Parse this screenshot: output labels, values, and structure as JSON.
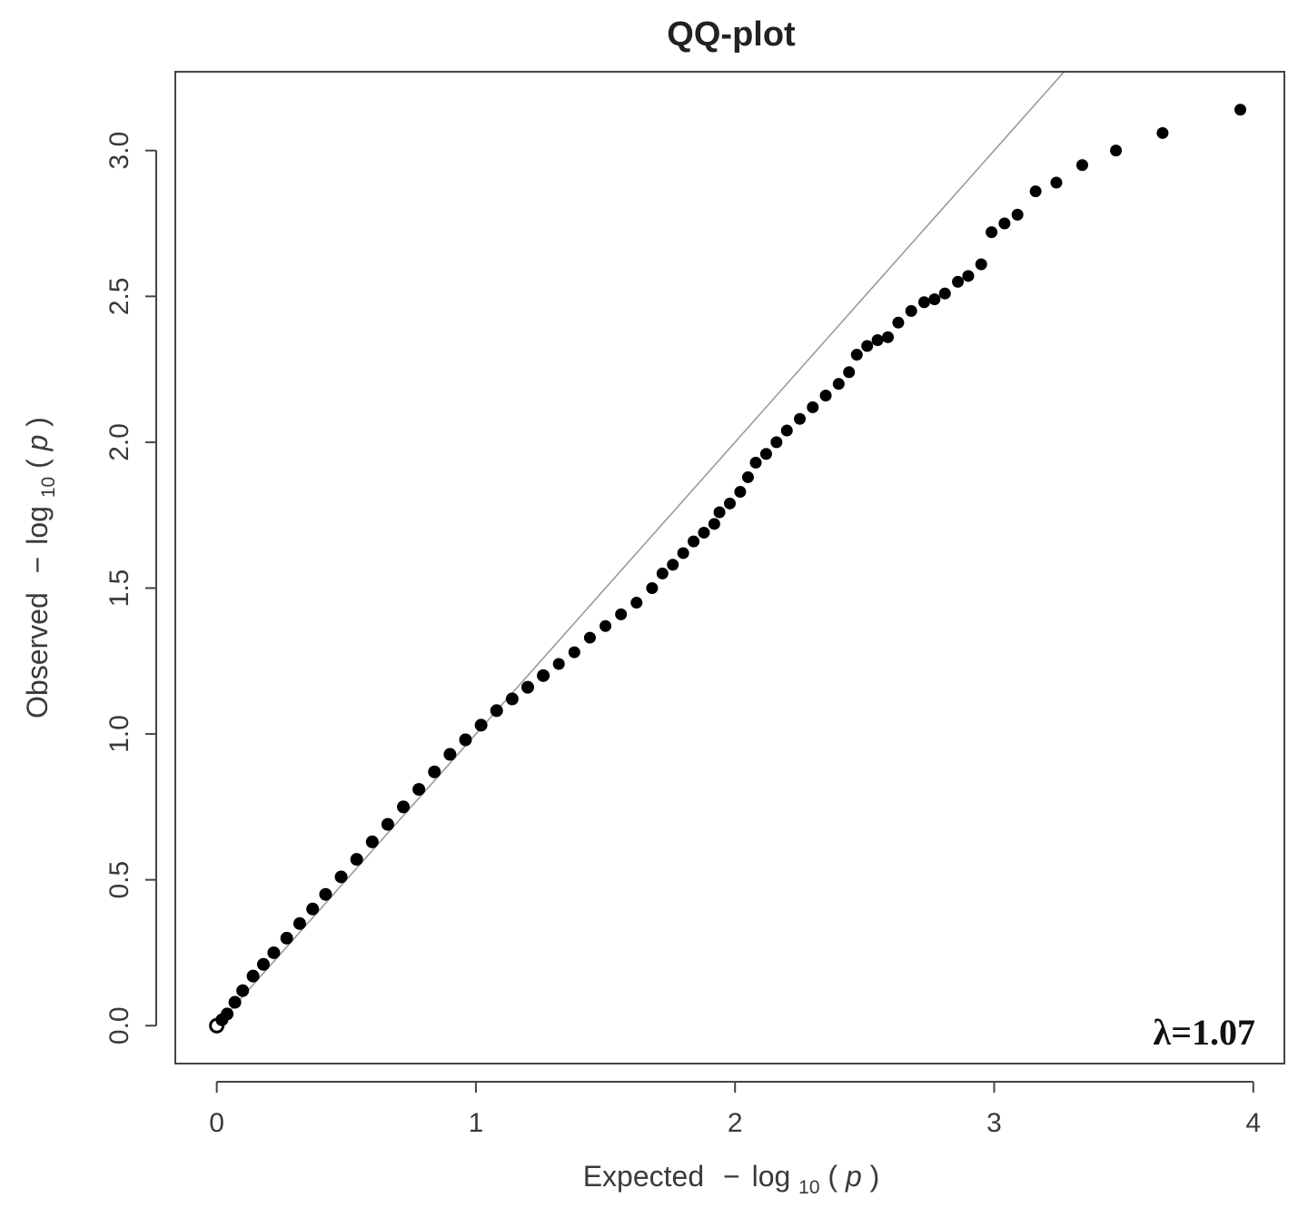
{
  "chart_data": {
    "type": "scatter",
    "title": "QQ-plot",
    "xlabel": {
      "prefix": "Expected",
      "minus": "−",
      "log": "log",
      "subscript": "10",
      "open": "(",
      "var": "p",
      "close": ")"
    },
    "ylabel": {
      "prefix": "Observed",
      "minus": "−",
      "log": "log",
      "subscript": "10",
      "open": "(",
      "var": "p",
      "close": ")"
    },
    "xlim": [
      -0.16,
      4.12
    ],
    "ylim": [
      -0.13,
      3.27
    ],
    "x_ticks": [
      0,
      1,
      2,
      3,
      4
    ],
    "x_tick_labels": [
      "0",
      "1",
      "2",
      "3",
      "4"
    ],
    "y_ticks": [
      0.0,
      0.5,
      1.0,
      1.5,
      2.0,
      2.5,
      3.0
    ],
    "y_tick_labels": [
      "0.0",
      "0.5",
      "1.0",
      "1.5",
      "2.0",
      "2.5",
      "3.0"
    ],
    "reference_line": {
      "slope": 1,
      "intercept": 0
    },
    "annotation": "λ=1.07",
    "grid": false,
    "point_color": "#000000",
    "line_color": "#9a9a9a",
    "points": [
      [
        0.0,
        0.0
      ],
      [
        0.02,
        0.02
      ],
      [
        0.04,
        0.04
      ],
      [
        0.07,
        0.08
      ],
      [
        0.1,
        0.12
      ],
      [
        0.14,
        0.17
      ],
      [
        0.18,
        0.21
      ],
      [
        0.22,
        0.25
      ],
      [
        0.27,
        0.3
      ],
      [
        0.32,
        0.35
      ],
      [
        0.37,
        0.4
      ],
      [
        0.42,
        0.45
      ],
      [
        0.48,
        0.51
      ],
      [
        0.54,
        0.57
      ],
      [
        0.6,
        0.63
      ],
      [
        0.66,
        0.69
      ],
      [
        0.72,
        0.75
      ],
      [
        0.78,
        0.81
      ],
      [
        0.84,
        0.87
      ],
      [
        0.9,
        0.93
      ],
      [
        0.96,
        0.98
      ],
      [
        1.02,
        1.03
      ],
      [
        1.08,
        1.08
      ],
      [
        1.14,
        1.12
      ],
      [
        1.2,
        1.16
      ],
      [
        1.26,
        1.2
      ],
      [
        1.32,
        1.24
      ],
      [
        1.38,
        1.28
      ],
      [
        1.44,
        1.33
      ],
      [
        1.5,
        1.37
      ],
      [
        1.56,
        1.41
      ],
      [
        1.62,
        1.45
      ],
      [
        1.68,
        1.5
      ],
      [
        1.72,
        1.55
      ],
      [
        1.76,
        1.58
      ],
      [
        1.8,
        1.62
      ],
      [
        1.84,
        1.66
      ],
      [
        1.88,
        1.69
      ],
      [
        1.92,
        1.72
      ],
      [
        1.94,
        1.76
      ],
      [
        1.98,
        1.79
      ],
      [
        2.02,
        1.83
      ],
      [
        2.05,
        1.88
      ],
      [
        2.08,
        1.93
      ],
      [
        2.12,
        1.96
      ],
      [
        2.16,
        2.0
      ],
      [
        2.2,
        2.04
      ],
      [
        2.25,
        2.08
      ],
      [
        2.3,
        2.12
      ],
      [
        2.35,
        2.16
      ],
      [
        2.4,
        2.2
      ],
      [
        2.44,
        2.24
      ],
      [
        2.47,
        2.3
      ],
      [
        2.51,
        2.33
      ],
      [
        2.55,
        2.35
      ],
      [
        2.59,
        2.36
      ],
      [
        2.63,
        2.41
      ],
      [
        2.68,
        2.45
      ],
      [
        2.73,
        2.48
      ],
      [
        2.77,
        2.49
      ],
      [
        2.81,
        2.51
      ],
      [
        2.86,
        2.55
      ],
      [
        2.9,
        2.57
      ],
      [
        2.95,
        2.61
      ],
      [
        2.99,
        2.72
      ],
      [
        3.04,
        2.75
      ],
      [
        3.09,
        2.78
      ],
      [
        3.16,
        2.86
      ],
      [
        3.24,
        2.89
      ],
      [
        3.34,
        2.95
      ],
      [
        3.47,
        3.0
      ],
      [
        3.65,
        3.06
      ],
      [
        3.95,
        3.14
      ]
    ]
  }
}
